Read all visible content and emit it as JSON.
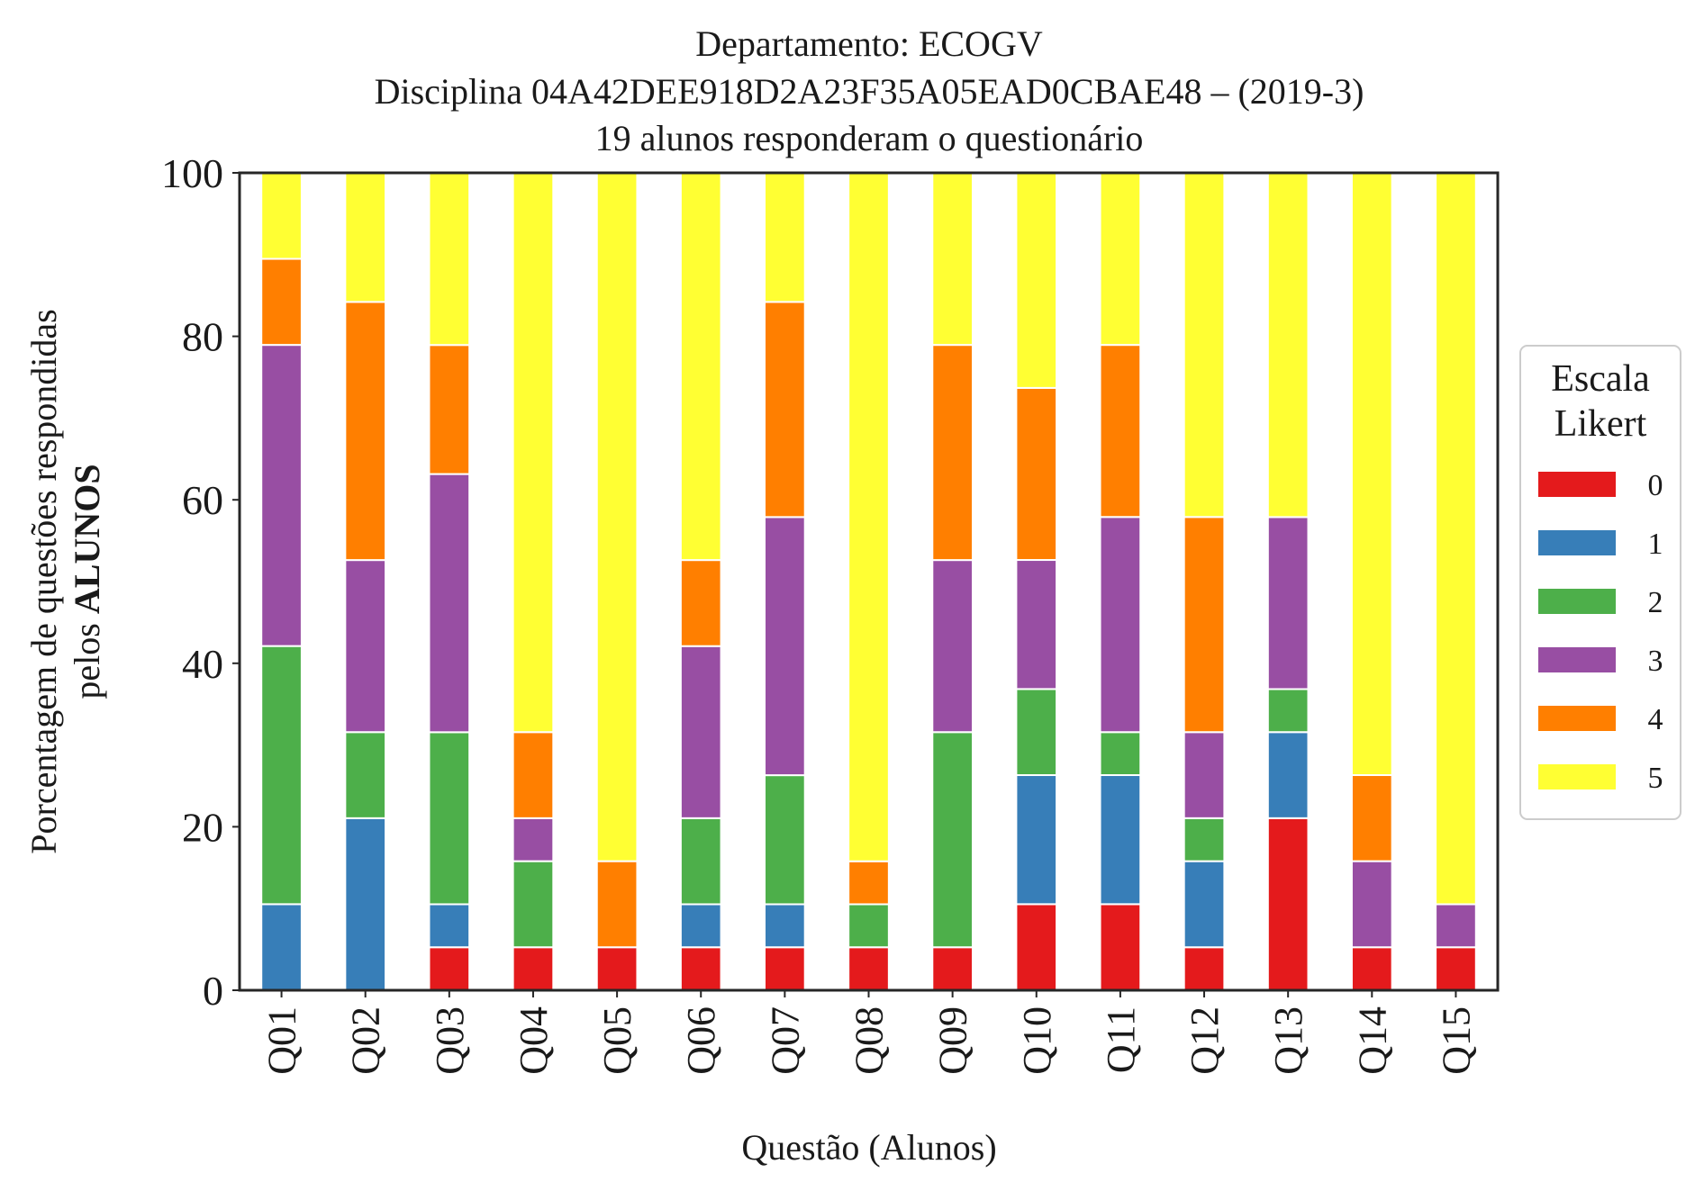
{
  "chart_data": {
    "type": "bar",
    "stacked": true,
    "title_lines": [
      "Departamento: ECOGV",
      "Disciplina 04A42DEE918D2A23F35A05EAD0CBAE48 – (2019-3)",
      "19 alunos responderam o questionário"
    ],
    "xlabel": "Questão (Alunos)",
    "ylabel_line1": "Porcentagem de questões respondidas",
    "ylabel_line2_normal": "pelos ",
    "ylabel_line2_bold": "ALUNOS",
    "ylim": [
      0,
      100
    ],
    "yticks": [
      0,
      20,
      40,
      60,
      80,
      100
    ],
    "grid": false,
    "legend": {
      "title_lines": [
        "Escala",
        "Likert"
      ],
      "placement": "right"
    },
    "categories": [
      "Q01",
      "Q02",
      "Q03",
      "Q04",
      "Q05",
      "Q06",
      "Q07",
      "Q08",
      "Q09",
      "Q10",
      "Q11",
      "Q12",
      "Q13",
      "Q14",
      "Q15"
    ],
    "series": [
      {
        "name": "0",
        "color": "#e41a1c",
        "values": [
          0,
          0,
          5.26,
          5.26,
          5.26,
          5.26,
          5.26,
          5.26,
          5.26,
          10.53,
          10.53,
          5.26,
          21.05,
          5.26,
          5.26
        ]
      },
      {
        "name": "1",
        "color": "#377eb8",
        "values": [
          10.53,
          21.05,
          5.26,
          0,
          0,
          5.26,
          5.26,
          0,
          0,
          15.79,
          15.79,
          10.53,
          10.53,
          0,
          0
        ]
      },
      {
        "name": "2",
        "color": "#4daf4a",
        "values": [
          31.58,
          10.53,
          21.05,
          10.53,
          0,
          10.53,
          15.79,
          5.26,
          26.32,
          10.53,
          5.26,
          5.26,
          5.26,
          0,
          0
        ]
      },
      {
        "name": "3",
        "color": "#984ea3",
        "values": [
          36.84,
          21.05,
          31.58,
          5.26,
          0,
          21.05,
          31.58,
          0,
          21.05,
          15.79,
          26.32,
          10.53,
          21.05,
          10.53,
          5.26
        ]
      },
      {
        "name": "4",
        "color": "#ff7f00",
        "values": [
          10.53,
          31.58,
          15.79,
          10.53,
          10.53,
          10.53,
          26.32,
          5.26,
          26.32,
          21.05,
          21.05,
          26.32,
          0,
          10.53,
          0
        ]
      },
      {
        "name": "5",
        "color": "#ffff33",
        "values": [
          10.53,
          15.79,
          21.05,
          68.42,
          84.21,
          47.37,
          15.79,
          84.21,
          21.05,
          26.32,
          21.05,
          42.11,
          42.11,
          73.68,
          89.47
        ]
      }
    ]
  }
}
